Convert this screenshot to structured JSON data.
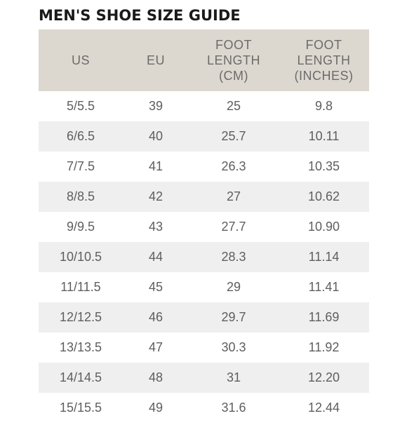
{
  "title": "MEN'S SHOE SIZE GUIDE",
  "headers": [
    [
      "US"
    ],
    [
      "EU"
    ],
    [
      "FOOT",
      "LENGTH",
      "(CM)"
    ],
    [
      "FOOT",
      "LENGTH",
      "(INCHES)"
    ]
  ],
  "rows": [
    [
      "5/5.5",
      "39",
      "25",
      "9.8"
    ],
    [
      "6/6.5",
      "40",
      "25.7",
      "10.11"
    ],
    [
      "7/7.5",
      "41",
      "26.3",
      "10.35"
    ],
    [
      "8/8.5",
      "42",
      "27",
      "10.62"
    ],
    [
      "9/9.5",
      "43",
      "27.7",
      "10.90"
    ],
    [
      "10/10.5",
      "44",
      "28.3",
      "11.14"
    ],
    [
      "11/11.5",
      "45",
      "29",
      "11.41"
    ],
    [
      "12/12.5",
      "46",
      "29.7",
      "11.69"
    ],
    [
      "13/13.5",
      "47",
      "30.3",
      "11.92"
    ],
    [
      "14/14.5",
      "48",
      "31",
      "12.20"
    ],
    [
      "15/15.5",
      "49",
      "31.6",
      "12.44"
    ]
  ],
  "colors": {
    "header_bg": "#dcd8cf",
    "stripe_bg": "#efefef",
    "title": "#1a1a1a",
    "text": "#5e5e5e"
  }
}
